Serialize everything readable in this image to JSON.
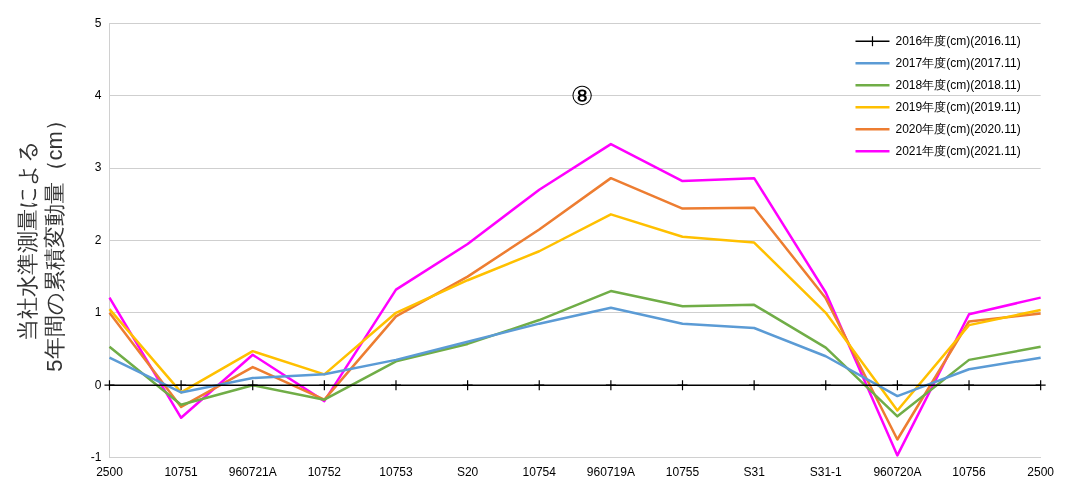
{
  "chart_data": {
    "type": "line",
    "title": "⑧",
    "ylabel": "当社水準測量による\n5年間の累積変動量（cm）",
    "categories": [
      "2500",
      "10751",
      "960721A",
      "10752",
      "10753",
      "S20",
      "10754",
      "960719A",
      "10755",
      "S31",
      "S31-1",
      "960720A",
      "10756",
      "2500"
    ],
    "series": [
      {
        "name": "2016年度(cm)(2016.11)",
        "color": "#000000",
        "marker": "cross",
        "values": [
          0,
          0,
          0,
          0,
          0,
          0,
          0,
          0,
          0,
          0,
          0,
          0,
          0,
          0
        ]
      },
      {
        "name": "2017年度(cm)(2017.11)",
        "color": "#5b9bd5",
        "values": [
          0.38,
          -0.1,
          0.1,
          0.15,
          0.35,
          0.6,
          0.85,
          1.07,
          0.85,
          0.79,
          0.4,
          -0.15,
          0.22,
          0.38
        ]
      },
      {
        "name": "2018年度(cm)(2018.11)",
        "color": "#70ad47",
        "values": [
          0.53,
          -0.27,
          0.0,
          -0.2,
          0.33,
          0.57,
          0.9,
          1.3,
          1.09,
          1.11,
          0.52,
          -0.43,
          0.35,
          0.53
        ]
      },
      {
        "name": "2019年度(cm)(2019.11)",
        "color": "#ffc000",
        "values": [
          1.05,
          -0.1,
          0.47,
          0.15,
          1.0,
          1.45,
          1.85,
          2.36,
          2.05,
          1.97,
          1.0,
          -0.35,
          0.83,
          1.04
        ]
      },
      {
        "name": "2020年度(cm)(2020.11)",
        "color": "#ed7d31",
        "values": [
          1.0,
          -0.3,
          0.25,
          -0.2,
          0.95,
          1.5,
          2.15,
          2.86,
          2.44,
          2.45,
          1.2,
          -0.75,
          0.88,
          0.99
        ]
      },
      {
        "name": "2021年度(cm)(2021.11)",
        "color": "#ff00ff",
        "values": [
          1.21,
          -0.45,
          0.42,
          -0.22,
          1.32,
          1.95,
          2.7,
          3.33,
          2.82,
          2.86,
          1.28,
          -0.97,
          0.98,
          1.21
        ]
      }
    ],
    "ylim": [
      -1,
      5
    ],
    "yticks": [
      -1,
      0,
      1,
      2,
      3,
      4,
      5
    ],
    "grid": "y",
    "legend": "top right",
    "marker": "none",
    "line_style": "solid"
  }
}
